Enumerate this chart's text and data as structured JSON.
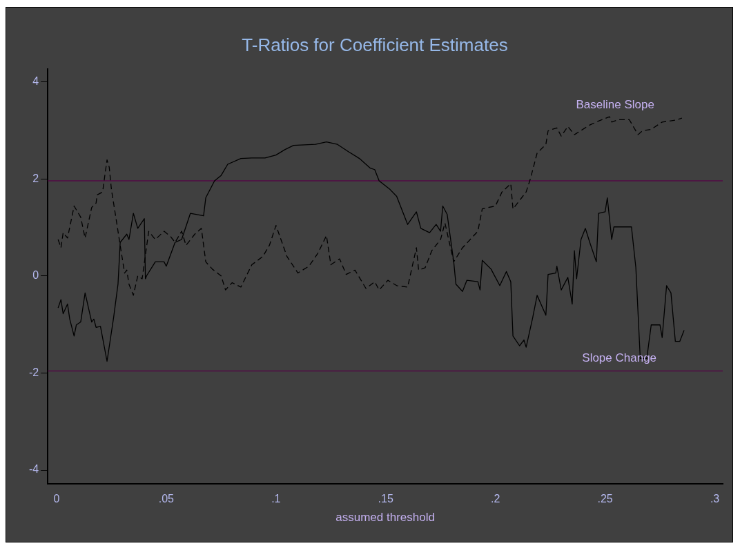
{
  "chart_data": {
    "type": "line",
    "title": "T-Ratios for Coefficient Estimates",
    "xlabel": "assumed threshold",
    "xlim": [
      -0.004,
      0.3036
    ],
    "ylim": [
      -4.29,
      4.26
    ],
    "xticks": [
      0,
      {
        "value": 0.05,
        "label": ".05"
      },
      {
        "value": 0.1,
        "label": ".1"
      },
      {
        "value": 0.15,
        "label": ".15"
      },
      {
        "value": 0.2,
        "label": ".2"
      },
      {
        "value": 0.25,
        "label": ".25"
      },
      {
        "value": 0.3,
        "label": ".3"
      }
    ],
    "yticks": [
      -4,
      -2,
      0,
      2,
      4
    ],
    "grid": false,
    "legend": false,
    "marker": "none",
    "ref_lines": [
      {
        "axis": "y",
        "value": 1.96,
        "color": "#520a44"
      },
      {
        "axis": "y",
        "value": -1.96,
        "color": "#520a44"
      }
    ],
    "series": [
      {
        "name": "Baseline Slope",
        "color": "#000000",
        "line_style": "dashed",
        "x": [
          0.0007,
          0.002,
          0.003,
          0.005,
          0.008,
          0.011,
          0.013,
          0.016,
          0.018,
          0.0185,
          0.021,
          0.022,
          0.023,
          0.024,
          0.025,
          0.027,
          0.029,
          0.031,
          0.032,
          0.033,
          0.035,
          0.037,
          0.039,
          0.042,
          0.045,
          0.049,
          0.052,
          0.054,
          0.057,
          0.059,
          0.063,
          0.066,
          0.068,
          0.071,
          0.075,
          0.077,
          0.08,
          0.084,
          0.089,
          0.094,
          0.097,
          0.1,
          0.105,
          0.11,
          0.115,
          0.119,
          0.123,
          0.125,
          0.129,
          0.132,
          0.136,
          0.141,
          0.145,
          0.147,
          0.151,
          0.155,
          0.16,
          0.164,
          0.165,
          0.168,
          0.171,
          0.175,
          0.177,
          0.181,
          0.185,
          0.192,
          0.194,
          0.2,
          0.203,
          0.207,
          0.208,
          0.214,
          0.216,
          0.219,
          0.223,
          0.224,
          0.228,
          0.23,
          0.233,
          0.236,
          0.243,
          0.247,
          0.252,
          0.253,
          0.256,
          0.261,
          0.265,
          0.267,
          0.271,
          0.276,
          0.282,
          0.285
        ],
        "values": [
          0.75,
          0.58,
          0.89,
          0.78,
          1.44,
          1.21,
          0.78,
          1.41,
          1.5,
          1.67,
          1.73,
          2.07,
          2.39,
          2.24,
          1.78,
          1.21,
          0.63,
          0.06,
          0.12,
          -0.17,
          -0.4,
          0,
          -0.06,
          0.92,
          0.75,
          0.92,
          0.81,
          0.69,
          0.92,
          0.63,
          0.86,
          0.98,
          0.29,
          0.14,
          0,
          -0.29,
          -0.14,
          -0.23,
          0.23,
          0.4,
          0.63,
          1.04,
          0.4,
          0.06,
          0.2,
          0.46,
          0.83,
          0.23,
          0.35,
          0.03,
          0.12,
          -0.26,
          -0.12,
          -0.29,
          -0.09,
          -0.2,
          -0.23,
          0.58,
          0.12,
          0.17,
          0.52,
          0.75,
          1.09,
          0.29,
          0.58,
          0.92,
          1.38,
          1.44,
          1.73,
          1.9,
          1.38,
          1.73,
          2.01,
          2.53,
          2.71,
          2.99,
          3.05,
          2.88,
          3.08,
          2.91,
          3.11,
          3.19,
          3.28,
          3.17,
          3.22,
          3.22,
          2.91,
          2.99,
          3.02,
          3.17,
          3.21,
          3.25
        ]
      },
      {
        "name": "Slope Change",
        "color": "#000000",
        "line_style": "solid",
        "x": [
          0.0007,
          0.002,
          0.003,
          0.005,
          0.006,
          0.008,
          0.009,
          0.011,
          0.013,
          0.016,
          0.017,
          0.018,
          0.02,
          0.023,
          0.026,
          0.028,
          0.029,
          0.032,
          0.033,
          0.035,
          0.037,
          0.04,
          0.0405,
          0.041,
          0.045,
          0.049,
          0.05,
          0.054,
          0.057,
          0.061,
          0.067,
          0.068,
          0.072,
          0.075,
          0.078,
          0.084,
          0.089,
          0.095,
          0.1,
          0.104,
          0.108,
          0.118,
          0.123,
          0.128,
          0.133,
          0.138,
          0.143,
          0.145,
          0.147,
          0.152,
          0.155,
          0.16,
          0.164,
          0.166,
          0.17,
          0.173,
          0.175,
          0.176,
          0.178,
          0.181,
          0.182,
          0.185,
          0.187,
          0.192,
          0.193,
          0.194,
          0.198,
          0.202,
          0.205,
          0.207,
          0.208,
          0.211,
          0.213,
          0.214,
          0.217,
          0.219,
          0.223,
          0.224,
          0.2275,
          0.228,
          0.23,
          0.233,
          0.235,
          0.236,
          0.237,
          0.239,
          0.241,
          0.243,
          0.246,
          0.247,
          0.25,
          0.251,
          0.253,
          0.254,
          0.262,
          0.264,
          0.266,
          0.269,
          0.271,
          0.275,
          0.276,
          0.278,
          0.28,
          0.282,
          0.284,
          0.286
        ],
        "values": [
          -0.66,
          -0.49,
          -0.78,
          -0.58,
          -0.89,
          -1.24,
          -1.01,
          -0.95,
          -0.35,
          -0.95,
          -0.89,
          -1.06,
          -1.04,
          -1.76,
          -0.86,
          -0.17,
          0.69,
          0.86,
          0.75,
          1.29,
          0.98,
          1.18,
          -0.06,
          0,
          0.29,
          0.29,
          0.2,
          0.69,
          0.75,
          1.29,
          1.24,
          1.61,
          1.96,
          2.07,
          2.3,
          2.42,
          2.43,
          2.43,
          2.49,
          2.6,
          2.69,
          2.71,
          2.76,
          2.71,
          2.56,
          2.42,
          2.22,
          2.19,
          1.96,
          1.78,
          1.64,
          1.06,
          1.32,
          0.98,
          0.89,
          1.06,
          0.92,
          1.44,
          1.27,
          0.29,
          -0.17,
          -0.32,
          -0.09,
          -0.12,
          -0.29,
          0.32,
          0.14,
          -0.2,
          0.09,
          -0.12,
          -1.24,
          -1.44,
          -1.32,
          -1.47,
          -0.86,
          -0.4,
          -0.81,
          0.03,
          0.06,
          0.2,
          -0.29,
          -0.03,
          -0.58,
          0.52,
          -0.06,
          0.75,
          0.98,
          0.69,
          0.29,
          1.29,
          1.32,
          1.61,
          0.75,
          1.01,
          1.01,
          0.17,
          -1.7,
          -1.7,
          -1.01,
          -1.01,
          -1.27,
          -0.2,
          -0.35,
          -1.35,
          -1.35,
          -1.12
        ]
      }
    ]
  }
}
